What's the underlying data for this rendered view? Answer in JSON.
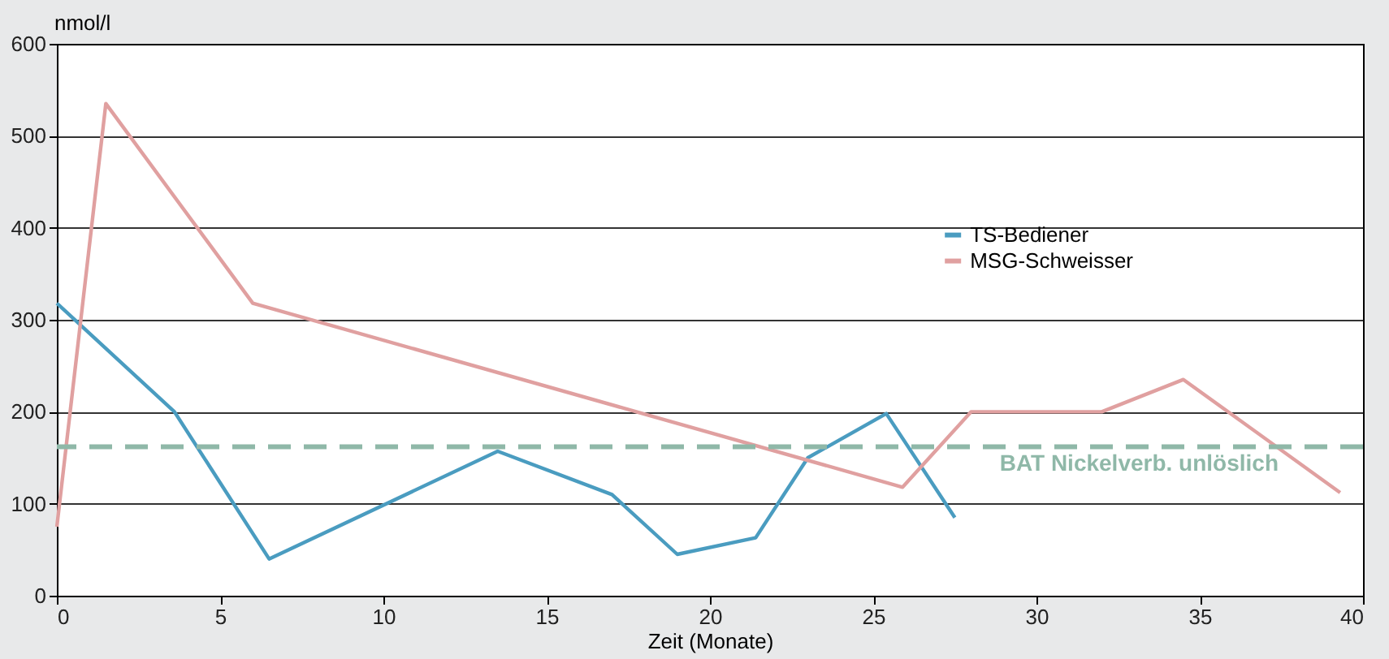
{
  "chart_data": {
    "type": "line",
    "xlabel": "Zeit (Monate)",
    "ylabel": "nmol/l",
    "series": [
      {
        "name": "TS-Bediener",
        "color": "#4a9cc0",
        "x": [
          0,
          3.6,
          6.5,
          13.5,
          17,
          19,
          21.4,
          23,
          25.4,
          27.5
        ],
        "values": [
          318,
          200,
          40,
          157,
          110,
          45,
          63,
          150,
          198,
          85
        ]
      },
      {
        "name": "MSG-Schweisser",
        "color": "#e0a0a0",
        "x": [
          0,
          1.5,
          6,
          25.9,
          28,
          32,
          34.5,
          39.3
        ],
        "values": [
          75,
          535,
          318,
          118,
          200,
          200,
          235,
          112
        ]
      }
    ],
    "xlim": [
      0,
      40
    ],
    "xticks": [
      0,
      5,
      10,
      15,
      20,
      25,
      30,
      35,
      40
    ],
    "ylim": [
      0,
      600
    ],
    "yticks": [
      0,
      100,
      200,
      300,
      400,
      500,
      600
    ],
    "grid": "y",
    "legend": "right",
    "marker": "none",
    "line_style": "solid",
    "ref_lines": [
      {
        "axis": "y",
        "value": 162,
        "label": "BAT Nickelverb. unlöslich",
        "color": "#8fb8a8",
        "line_style": "dashed"
      }
    ]
  }
}
